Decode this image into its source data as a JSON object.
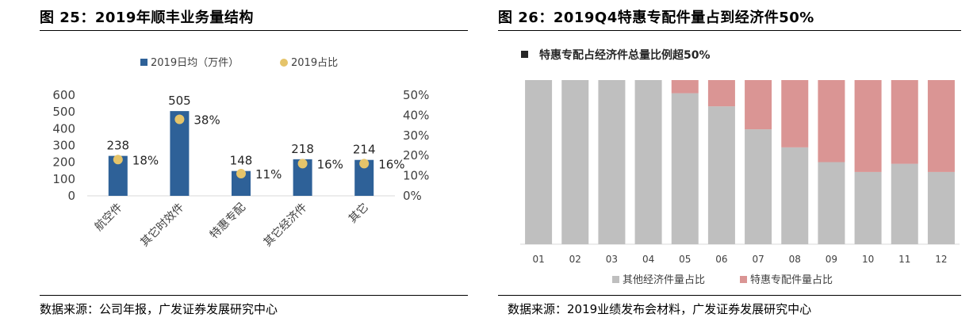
{
  "left": {
    "title": "图 25：2019年顺丰业务量结构",
    "source": "数据来源：公司年报，广发证券发展研究中心",
    "chart_data": {
      "type": "bar",
      "categories": [
        "航空件",
        "其它时效件",
        "特惠专配",
        "其它经济件",
        "其它"
      ],
      "series": [
        {
          "name": "2019日均（万件）",
          "values": [
            238,
            505,
            148,
            218,
            214
          ],
          "axis": "left",
          "color": "#2E6198",
          "kind": "bar"
        },
        {
          "name": "2019占比",
          "values": [
            18,
            38,
            11,
            16,
            16
          ],
          "axis": "right",
          "color": "#E5C46A",
          "kind": "scatter"
        }
      ],
      "value_labels": [
        "238",
        "505",
        "148",
        "218",
        "214"
      ],
      "pct_labels": [
        "18%",
        "38%",
        "11%",
        "16%",
        "16%"
      ],
      "y_left_ticks": [
        "0",
        "100",
        "200",
        "300",
        "400",
        "500",
        "600"
      ],
      "y_right_ticks": [
        "0%",
        "10%",
        "20%",
        "30%",
        "40%",
        "50%"
      ],
      "ylim": [
        0,
        600
      ],
      "ylim_right": [
        0,
        50
      ],
      "legend_position": "top",
      "grid": false
    }
  },
  "right": {
    "title": "图 26：2019Q4特惠专配件量占到经济件50%",
    "source": "数据来源：2019业绩发布会材料，广发证券发展研究中心",
    "chart_data": {
      "type": "bar",
      "stacked": true,
      "title": "特惠专配占经济件总量比例超50%",
      "categories": [
        "01",
        "02",
        "03",
        "04",
        "05",
        "06",
        "07",
        "08",
        "09",
        "10",
        "11",
        "12"
      ],
      "series": [
        {
          "name": "其他经济件量占比",
          "values": [
            100,
            100,
            100,
            100,
            92,
            84,
            70,
            59,
            50,
            44,
            49,
            44
          ],
          "color": "#BFBFBF"
        },
        {
          "name": "特惠专配件量占比",
          "values": [
            0,
            0,
            0,
            0,
            8,
            16,
            30,
            41,
            50,
            56,
            51,
            56
          ],
          "color": "#DA9594"
        }
      ],
      "ylim": [
        0,
        100
      ],
      "legend_position": "bottom",
      "grid": false
    }
  }
}
